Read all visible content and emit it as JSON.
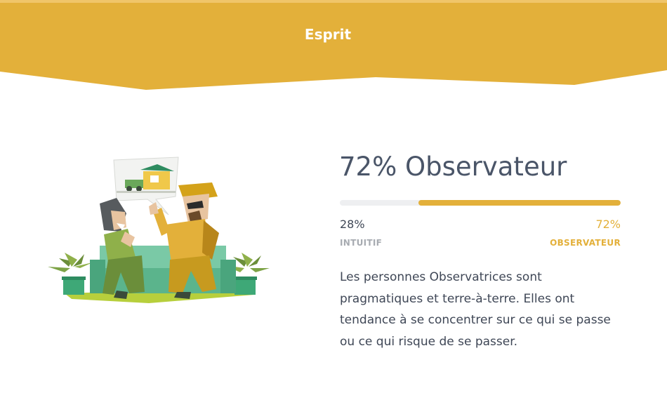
{
  "header": {
    "title": "Esprit",
    "color": "#e3b03a"
  },
  "trait": {
    "title": "72% Observateur",
    "percent": 72,
    "left_percent": "28%",
    "right_percent": "72%",
    "left_label": "INTUITIF",
    "right_label": "OBSERVATEUR",
    "description": "Les personnes Observatrices sont pragmatiques et terre-à-terre. Elles ont tendance à se concentrer sur ce qui se passe ou ce qui risque de se passer.",
    "accent_color": "#e3b03a"
  },
  "illustration": {
    "icon": "two-people-discussing-house-illustration"
  }
}
